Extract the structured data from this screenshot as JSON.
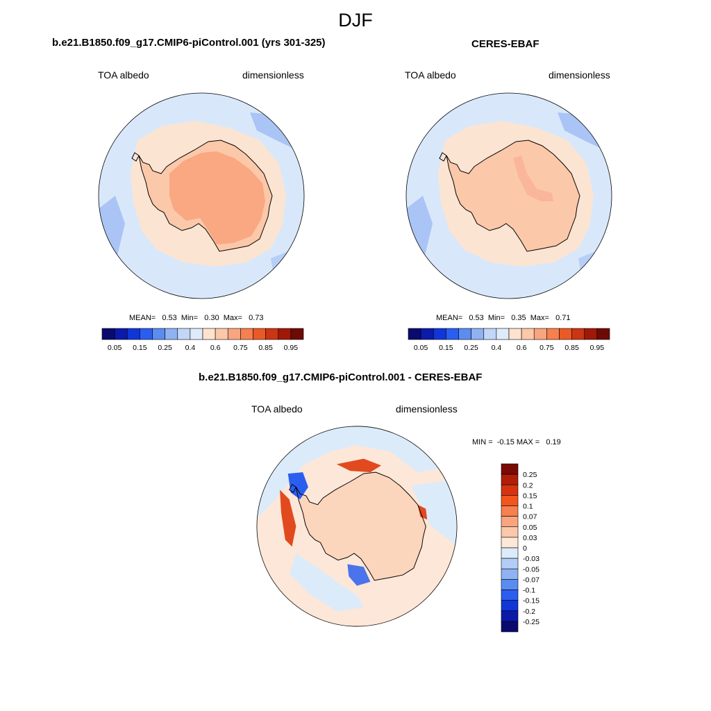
{
  "figure": {
    "title": "DJF"
  },
  "panels": [
    {
      "id": "model",
      "title": "b.e21.B1850.f09_g17.CMIP6-piControl.001 (yrs 301-325)",
      "left_label": "TOA albedo",
      "right_label": "dimensionless",
      "stats": "MEAN=   0.53  Min=   0.30  Max=   0.73"
    },
    {
      "id": "obs",
      "title": "CERES-EBAF",
      "left_label": "TOA albedo",
      "right_label": "dimensionless",
      "stats": "MEAN=   0.53  Min=   0.35  Max=   0.71"
    },
    {
      "id": "diff",
      "title": "b.e21.B1850.f09_g17.CMIP6-piControl.001 - CERES-EBAF",
      "left_label": "TOA albedo",
      "right_label": "dimensionless",
      "stats": "MIN =  -0.15 MAX =   0.19"
    }
  ],
  "chart_data": [
    {
      "type": "heatmap",
      "projection": "south-polar-stereographic",
      "title": "b.e21.B1850.f09_g17.CMIP6-piControl.001 (yrs 301-325)",
      "variable": "TOA albedo",
      "units": "dimensionless",
      "mean": 0.53,
      "min": 0.3,
      "max": 0.73,
      "colorbar": {
        "orientation": "horizontal",
        "levels": [
          0.05,
          0.1,
          0.15,
          0.2,
          0.25,
          0.3,
          0.4,
          0.5,
          0.6,
          0.7,
          0.75,
          0.8,
          0.85,
          0.9,
          0.95
        ],
        "tick_labels": [
          "0.05",
          "0.15",
          "0.25",
          "0.4",
          "0.6",
          "0.75",
          "0.85",
          "0.95"
        ],
        "colors": [
          "#0a0a6e",
          "#0b1aa8",
          "#1036d8",
          "#2a5ef0",
          "#5b8cf2",
          "#8fb2f3",
          "#c2d6f8",
          "#deebfa",
          "#fde3cf",
          "#fcc8aa",
          "#f9a57f",
          "#f6804f",
          "#ea5a26",
          "#cc3512",
          "#a01808",
          "#6e0a04"
        ]
      },
      "regions": {
        "open_ocean": "#d8e8fa",
        "sea_ice_zone": "#fce4d2",
        "antarctic_coast": "#fcc8aa",
        "antarctic_interior": "#f9a882",
        "low_albedo_patches": "#a9c4f5"
      }
    },
    {
      "type": "heatmap",
      "projection": "south-polar-stereographic",
      "title": "CERES-EBAF",
      "variable": "TOA albedo",
      "units": "dimensionless",
      "mean": 0.53,
      "min": 0.35,
      "max": 0.71,
      "colorbar": {
        "orientation": "horizontal",
        "levels": [
          0.05,
          0.1,
          0.15,
          0.2,
          0.25,
          0.3,
          0.4,
          0.5,
          0.6,
          0.7,
          0.75,
          0.8,
          0.85,
          0.9,
          0.95
        ],
        "tick_labels": [
          "0.05",
          "0.15",
          "0.25",
          "0.4",
          "0.6",
          "0.75",
          "0.85",
          "0.95"
        ],
        "colors": [
          "#0a0a6e",
          "#0b1aa8",
          "#1036d8",
          "#2a5ef0",
          "#5b8cf2",
          "#8fb2f3",
          "#c2d6f8",
          "#deebfa",
          "#fde3cf",
          "#fcc8aa",
          "#f9a57f",
          "#f6804f",
          "#ea5a26",
          "#cc3512",
          "#a01808",
          "#6e0a04"
        ]
      },
      "regions": {
        "open_ocean": "#d8e8fa",
        "sea_ice_zone": "#fce4d2",
        "antarctica": "#fcc8aa",
        "ridge_band": "#f9b69a",
        "low_albedo_patches": "#a9c4f5"
      }
    },
    {
      "type": "heatmap",
      "projection": "south-polar-stereographic",
      "title": "b.e21.B1850.f09_g17.CMIP6-piControl.001 - CERES-EBAF",
      "variable": "TOA albedo",
      "units": "dimensionless",
      "min": -0.15,
      "max": 0.19,
      "colorbar": {
        "orientation": "vertical",
        "tick_labels": [
          "0.25",
          "0.2",
          "0.15",
          "0.1",
          "0.07",
          "0.05",
          "0.03",
          "0",
          "-0.03",
          "-0.05",
          "-0.07",
          "-0.1",
          "-0.15",
          "-0.2",
          "-0.25"
        ],
        "colors": [
          "#7a0a04",
          "#b01e08",
          "#d63410",
          "#f4551c",
          "#f6804f",
          "#f9a57f",
          "#fcc8aa",
          "#fde7d8",
          "#dcebfa",
          "#b3cdf6",
          "#8fb2f3",
          "#5b8cf2",
          "#2a5ef0",
          "#1036d8",
          "#0b1aa8",
          "#0a0a6e"
        ]
      },
      "regions": {
        "ocean_positive": "#fde7d8",
        "ocean_negative": "#dcebfa",
        "antarctica": "#fcd5bd",
        "strong_positive": "#e04a1e",
        "strong_negative": "#2a5ef0"
      }
    }
  ]
}
